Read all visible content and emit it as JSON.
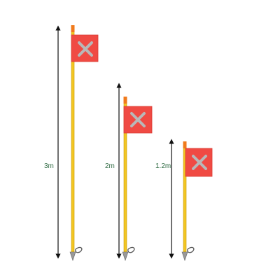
{
  "heights": [
    {
      "label": "3m",
      "flag_color": "#f04a43",
      "cross_color": "#b8b8b8"
    },
    {
      "label": "2m",
      "flag_color": "#f04a43",
      "cross_color": "#b8b8b8"
    },
    {
      "label": "1.2m",
      "flag_color": "#f04a43",
      "cross_color": "#b8b8b8"
    }
  ],
  "colors": {
    "pole": "#f2c623",
    "pole_outline": "#c99a00",
    "arrow": "#111111",
    "label": "#2f6b43"
  }
}
